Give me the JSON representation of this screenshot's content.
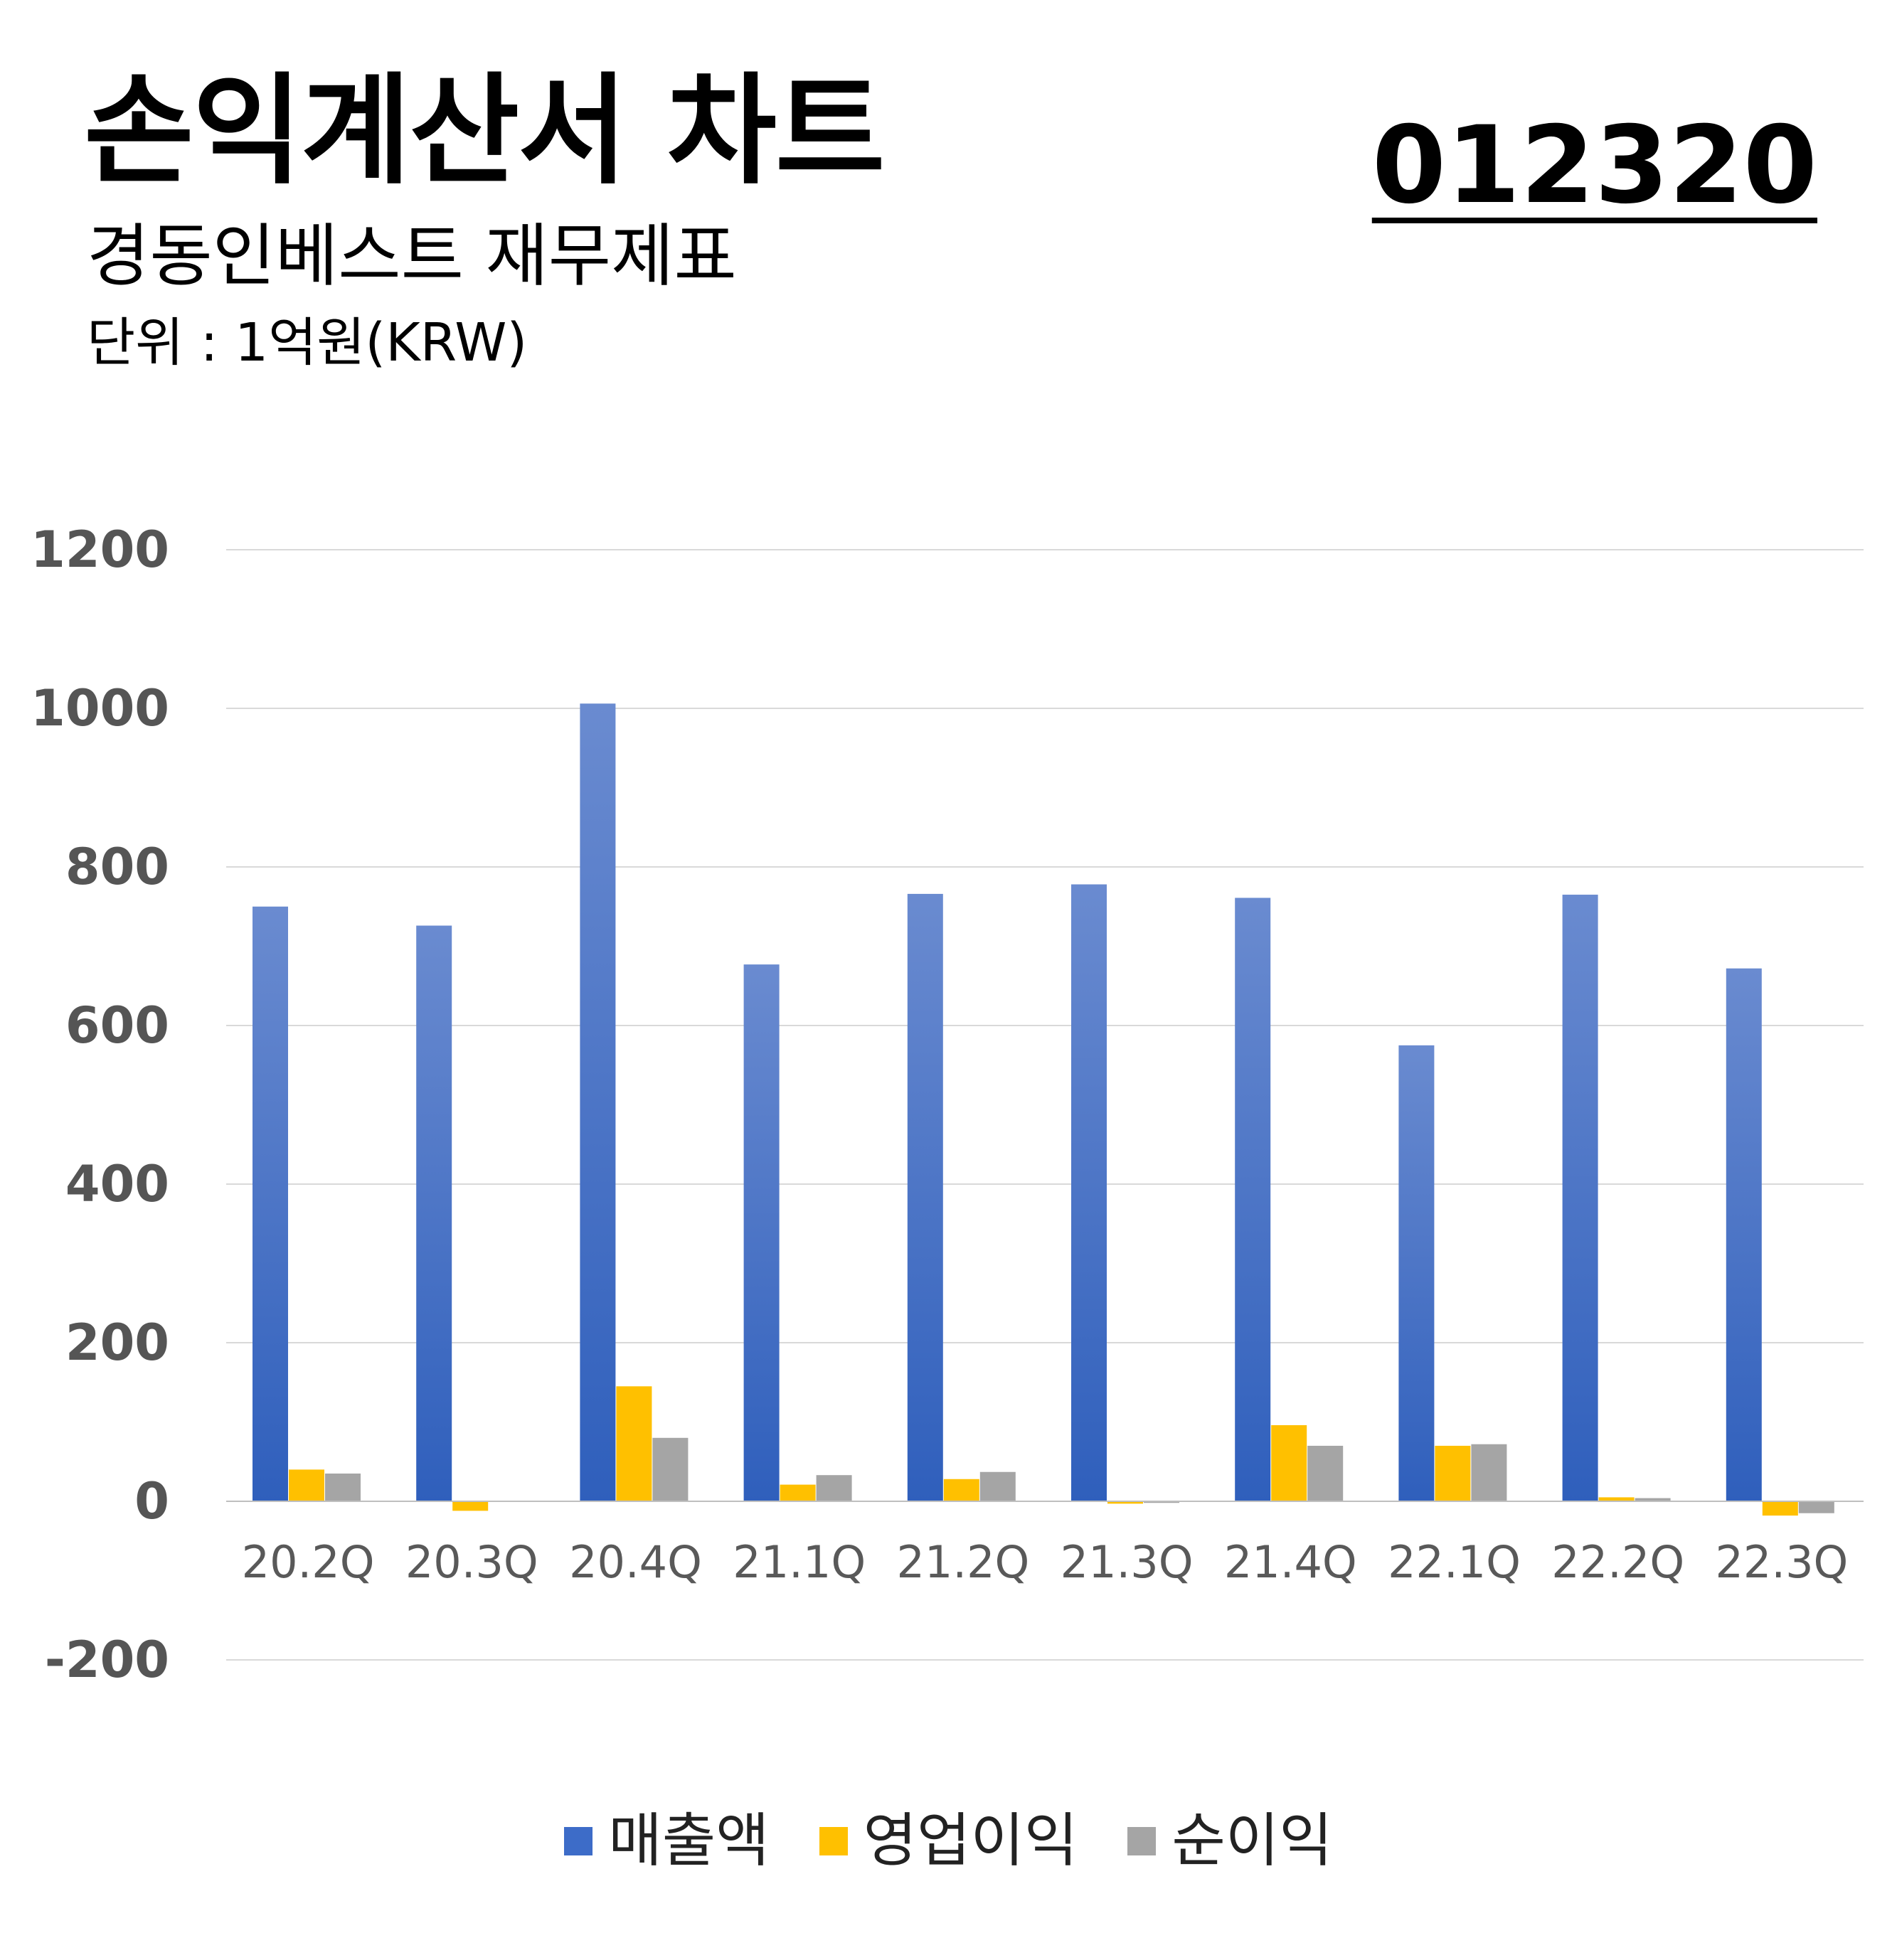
{
  "header": {
    "title": "손익계산서 차트",
    "subtitle": "경동인베스트 재무제표",
    "unit": "단위 : 1억원(KRW)",
    "code": "012320"
  },
  "colors": {
    "revenue": "#3D6CC8",
    "operating_profit": "#FFC000",
    "net_profit": "#A5A5A5",
    "gridline": "#D9D9D9",
    "tick_text": "#555555",
    "category_text": "#595959"
  },
  "chart_data": {
    "type": "bar",
    "categories": [
      "20.2Q",
      "20.3Q",
      "20.4Q",
      "21.1Q",
      "21.2Q",
      "21.3Q",
      "21.4Q",
      "22.1Q",
      "22.2Q",
      "22.3Q"
    ],
    "series": [
      {
        "name": "매출액",
        "values": [
          750,
          726,
          1006,
          677,
          766,
          778,
          761,
          575,
          765,
          672
        ]
      },
      {
        "name": "영업이익",
        "values": [
          40,
          -12,
          145,
          21,
          28,
          -3,
          96,
          70,
          5,
          -18
        ]
      },
      {
        "name": "순이익",
        "values": [
          35,
          0,
          80,
          33,
          37,
          -2,
          70,
          72,
          4,
          -15
        ]
      }
    ],
    "ylim": [
      -200,
      1200
    ],
    "yticks": [
      "1200",
      "1000",
      "800",
      "600",
      "400",
      "200",
      "0",
      "-200"
    ],
    "grid": true,
    "legend": "bottom"
  }
}
